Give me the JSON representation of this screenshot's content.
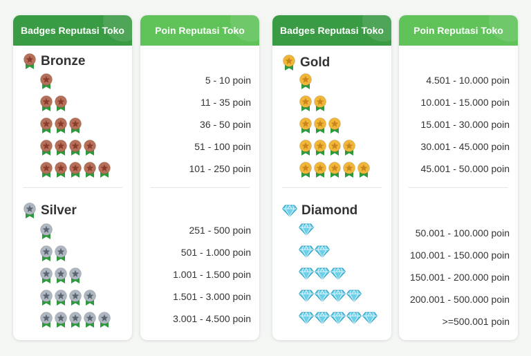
{
  "columns": [
    {
      "header": "Badges Reputasi Toko"
    },
    {
      "header": "Poin Reputasi Toko"
    },
    {
      "header": "Badges Reputasi Toko"
    },
    {
      "header": "Poin Reputasi Toko"
    }
  ],
  "tiers": [
    {
      "name": "Bronze",
      "icon": "bronze-medal-icon",
      "color": "#b5705a",
      "star": "#8a3c2c",
      "levels": [
        1,
        2,
        3,
        4,
        5
      ],
      "ranges": [
        "5 - 10 poin",
        "11 - 35 poin",
        "36 - 50 poin",
        "51 - 100 poin",
        "101 - 250 poin"
      ]
    },
    {
      "name": "Silver",
      "icon": "silver-medal-icon",
      "color": "#aeb6c0",
      "star": "#5a6470",
      "levels": [
        1,
        2,
        3,
        4,
        5
      ],
      "ranges": [
        "251 - 500 poin",
        "501 - 1.000 poin",
        "1.001 - 1.500 poin",
        "1.501 - 3.000 poin",
        "3.001 - 4.500 poin"
      ]
    },
    {
      "name": "Gold",
      "icon": "gold-medal-icon",
      "color": "#f0b63a",
      "star": "#c8861a",
      "levels": [
        1,
        2,
        3,
        4,
        5
      ],
      "ranges": [
        "4.501 - 10.000 poin",
        "10.001 - 15.000 poin",
        "15.001 - 30.000 poin",
        "30.001 - 45.000 poin",
        "45.001 - 50.000 poin"
      ]
    },
    {
      "name": "Diamond",
      "icon": "diamond-icon",
      "color": "#6fd0ea",
      "star": "#2a9fc4",
      "levels": [
        1,
        2,
        3,
        4,
        5
      ],
      "ranges": [
        "50.001 - 100.000 poin",
        "100.001 - 150.000 poin",
        "150.001 - 200.000 poin",
        "200.001 - 500.000 poin",
        ">=500.001 poin"
      ]
    }
  ],
  "colors": {
    "header_dark": "#3a9b45",
    "header_light": "#5fc35a",
    "ribbon": "#2e9a3e"
  }
}
